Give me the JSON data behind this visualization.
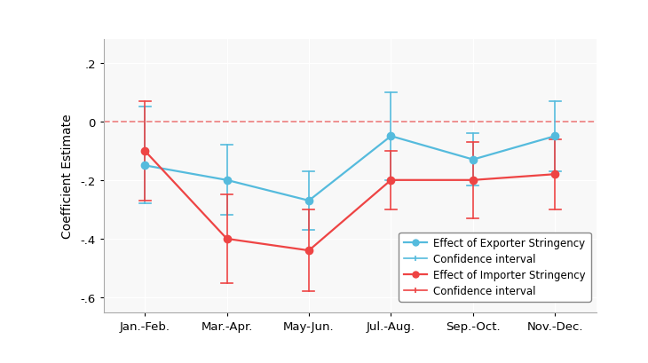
{
  "x_labels": [
    "Jan.-Feb.",
    "Mar.-Apr.",
    "May-Jun.",
    "Jul.-Aug.",
    "Sep.-Oct.",
    "Nov.-Dec."
  ],
  "x": [
    0,
    1,
    2,
    3,
    4,
    5
  ],
  "exporter_y": [
    -0.15,
    -0.2,
    -0.27,
    -0.05,
    -0.13,
    -0.05
  ],
  "exporter_ci_low": [
    -0.28,
    -0.32,
    -0.37,
    -0.2,
    -0.22,
    -0.17
  ],
  "exporter_ci_high": [
    0.05,
    -0.08,
    -0.17,
    0.1,
    -0.04,
    0.07
  ],
  "importer_y": [
    -0.1,
    -0.4,
    -0.44,
    -0.2,
    -0.2,
    -0.18
  ],
  "importer_ci_low": [
    -0.27,
    -0.55,
    -0.58,
    -0.3,
    -0.33,
    -0.3
  ],
  "importer_ci_high": [
    0.07,
    -0.25,
    -0.3,
    -0.1,
    -0.07,
    -0.06
  ],
  "exporter_color": "#55BBDD",
  "importer_color": "#EE4444",
  "hline_color": "#EE8888",
  "ylim": [
    -0.65,
    0.28
  ],
  "yticks": [
    -0.6,
    -0.4,
    -0.2,
    0.0,
    0.2
  ],
  "ytick_labels": [
    "-.6",
    "-.4",
    "-.2",
    "0",
    ".2"
  ],
  "ylabel": "Coefficient Estimate",
  "legend_labels": [
    "Effect of Exporter Stringency",
    "Confidence interval",
    "Effect of Importer Stringency",
    "Confidence interval"
  ],
  "bg_color": "#f2f2f2",
  "plot_bg": "#ffffff",
  "grid_color": "#ffffff",
  "spine_color": "#aaaaaa"
}
